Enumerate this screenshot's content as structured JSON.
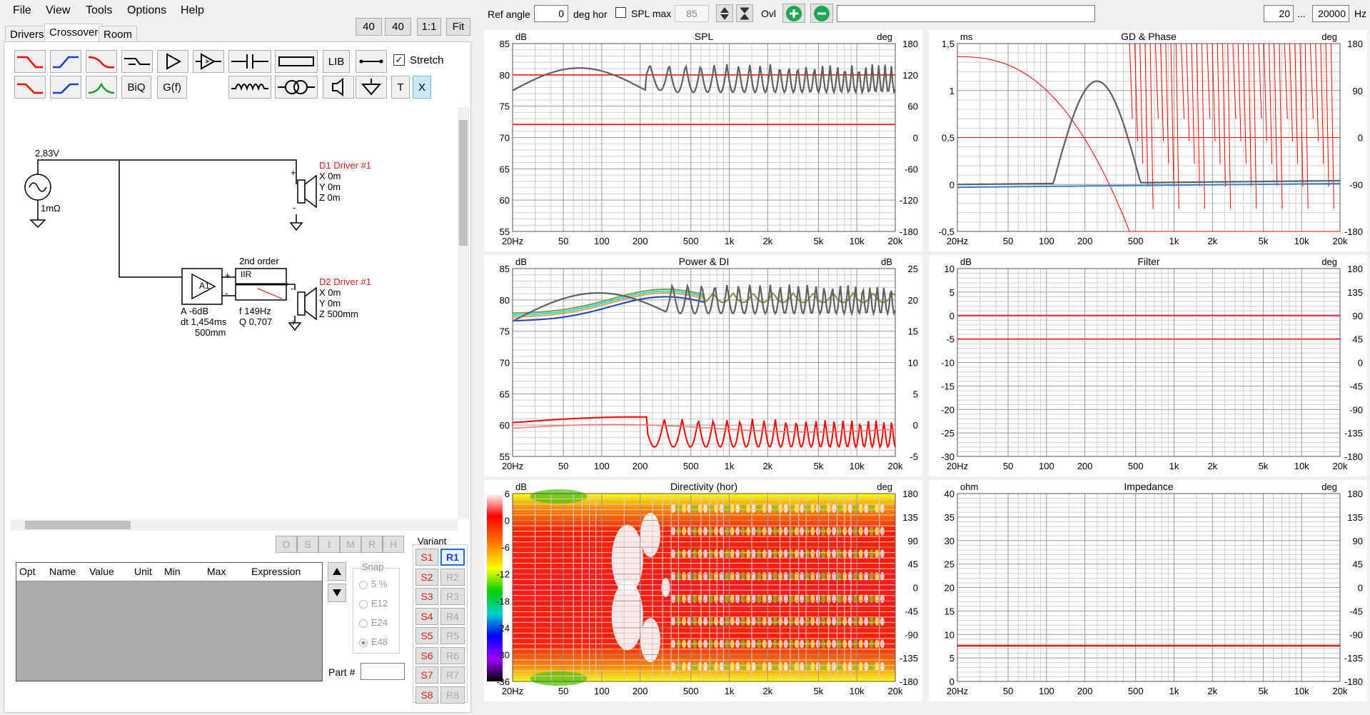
{
  "menu": {
    "items": [
      "File",
      "View",
      "Tools",
      "Options",
      "Help"
    ]
  },
  "tabs": {
    "drivers": "Drivers",
    "crossover": "Crossover",
    "room": "Room"
  },
  "zoom": {
    "b40a": "40",
    "b40b": "40",
    "b11": "1:1",
    "fit": "Fit"
  },
  "toolbar": {
    "lib": "LIB",
    "biq": "BiQ",
    "gf": "G(f)",
    "stretch": "Stretch",
    "t": "T",
    "x": "X"
  },
  "schematic": {
    "source": {
      "voltage": "2,83V",
      "impedance": "1mΩ"
    },
    "d1": {
      "name": "D1 Driver #1",
      "x": "X 0m",
      "y": "Y 0m",
      "z": "Z 0m"
    },
    "d2": {
      "name": "D2 Driver #1",
      "x": "X 0m",
      "y": "Y 0m",
      "z": "Z 500mm"
    },
    "amp": {
      "label": "A1",
      "a": "A  -6dB",
      "dt": "dt 1,454ms",
      "mm": "500mm"
    },
    "filter": {
      "order": "2nd order",
      "type": "IIR",
      "f": "f    149Hz",
      "q": "Q  0,707"
    }
  },
  "sbuttons": [
    "O",
    "S",
    "I",
    "M",
    "R",
    "H"
  ],
  "table": {
    "headers": [
      "Opt",
      "Name",
      "Value",
      "Unit",
      "Min",
      "Max",
      "Expression"
    ]
  },
  "snap": {
    "title": "Snap",
    "options": [
      "5 %",
      "E12",
      "E24",
      "E48"
    ],
    "selected": "E48"
  },
  "variant": {
    "title": "Variant",
    "s": [
      "S1",
      "S2",
      "S3",
      "S4",
      "S5",
      "S6",
      "S7",
      "S8"
    ],
    "r": [
      "R1",
      "R2",
      "R3",
      "R4",
      "R5",
      "R6",
      "R7",
      "R8"
    ]
  },
  "part": {
    "label": "Part #"
  },
  "topbar": {
    "ref_angle_label": "Ref angle",
    "ref_angle_value": "0",
    "deg_hor": "deg hor",
    "spl_max_label": "SPL max",
    "spl_max_value": "85",
    "ovl": "Ovl",
    "freq_min": "20",
    "dots": "...",
    "freq_max": "20000",
    "hz": "Hz"
  },
  "xticks": [
    "20Hz",
    "50",
    "100",
    "200",
    "500",
    "1k",
    "2k",
    "5k",
    "10k",
    "20k"
  ],
  "plots": {
    "spl": {
      "title": "SPL",
      "lunit": "dB",
      "runit": "deg",
      "left": [
        "85",
        "80",
        "75",
        "70",
        "65",
        "60",
        "55"
      ],
      "right": [
        "180",
        "120",
        "60",
        "0",
        "-60",
        "-120",
        "-180"
      ]
    },
    "gd": {
      "title": "GD & Phase",
      "lunit": "ms",
      "runit": "deg",
      "left": [
        "1,5",
        "1",
        "0,5",
        "0",
        "-0,5"
      ],
      "right": [
        "180",
        "90",
        "0",
        "-90",
        "-180"
      ]
    },
    "power": {
      "title": "Power & DI",
      "lunit": "dB",
      "runit": "dB",
      "left": [
        "85",
        "80",
        "75",
        "70",
        "65",
        "60",
        "55"
      ],
      "right": [
        "25",
        "20",
        "15",
        "10",
        "5",
        "0",
        "-5"
      ]
    },
    "filter": {
      "title": "Filter",
      "lunit": "dB",
      "runit": "deg",
      "left": [
        "10",
        "5",
        "0",
        "-5",
        "-10",
        "-15",
        "-20",
        "-25",
        "-30"
      ],
      "right": [
        "180",
        "135",
        "90",
        "45",
        "0",
        "-45",
        "-90",
        "-135",
        "-180"
      ]
    },
    "directivity": {
      "title": "Directivity (hor)",
      "lunit": "dB",
      "runit": "deg",
      "left": [
        "6",
        "0",
        "-6",
        "-12",
        "-18",
        "-24",
        "-30",
        "-36"
      ],
      "right": [
        "180",
        "135",
        "90",
        "45",
        "0",
        "-45",
        "-90",
        "-135",
        "-180"
      ]
    },
    "impedance": {
      "title": "Impedance",
      "lunit": "ohm",
      "runit": "deg",
      "left": [
        "40",
        "35",
        "30",
        "25",
        "20",
        "15",
        "10",
        "5",
        "0"
      ],
      "right": [
        "180",
        "135",
        "90",
        "45",
        "0",
        "-45",
        "-90",
        "-135",
        "-180"
      ]
    }
  },
  "colors": {
    "red": "#ff0000",
    "gray": "#606060",
    "blue": "#1a3fd6",
    "cyan": "#00e5ff",
    "orange": "#f0a030",
    "olive": "#8a9a40",
    "pink": "#e0405a"
  }
}
